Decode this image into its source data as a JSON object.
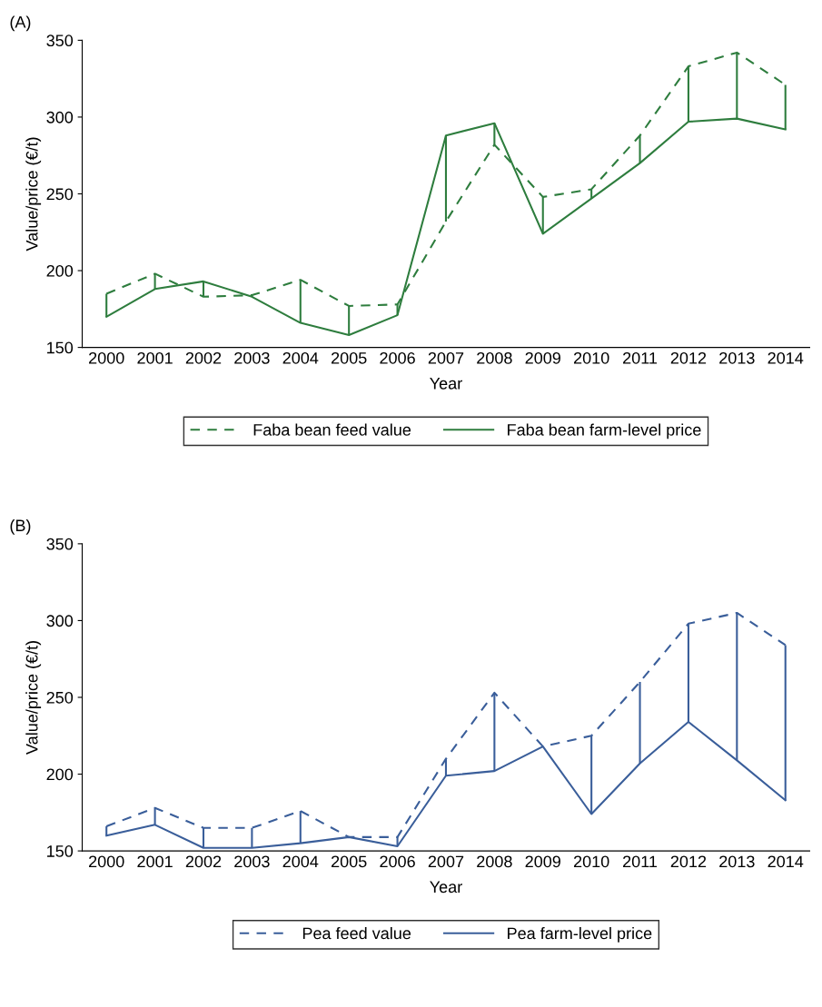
{
  "chart_data": [
    {
      "type": "line",
      "title": "(A)",
      "xlabel": "Year",
      "ylabel": "Value/price (€/t)",
      "categories": [
        "2000",
        "2001",
        "2002",
        "2003",
        "2004",
        "2005",
        "2006",
        "2007",
        "2008",
        "2009",
        "2010",
        "2011",
        "2012",
        "2013",
        "2014"
      ],
      "ylim": [
        150,
        350
      ],
      "yticks": [
        150,
        200,
        250,
        300,
        350
      ],
      "grid": false,
      "legend": "bottom",
      "marker": "none",
      "series": [
        {
          "name": "Faba bean feed value",
          "color": "#2e7d3e",
          "line_style": "dashed",
          "values": [
            185,
            198,
            183,
            184,
            194,
            177,
            178,
            232,
            282,
            248,
            253,
            288,
            333,
            342,
            321
          ]
        },
        {
          "name": "Faba bean farm-level price",
          "color": "#2e7d3e",
          "line_style": "solid",
          "values": [
            170,
            188,
            193,
            183,
            166,
            158,
            171,
            288,
            296,
            224,
            247,
            270,
            297,
            299,
            292
          ],
          "errors": [
            [
              170,
              185
            ],
            [
              188,
              198
            ],
            [
              183,
              193
            ],
            [
              183,
              184
            ],
            [
              166,
              194
            ],
            [
              158,
              177
            ],
            [
              171,
              178
            ],
            [
              232,
              288
            ],
            [
              282,
              296
            ],
            [
              224,
              248
            ],
            [
              247,
              253
            ],
            [
              270,
              288
            ],
            [
              297,
              333
            ],
            [
              299,
              342
            ],
            [
              292,
              321
            ]
          ]
        }
      ]
    },
    {
      "type": "line",
      "title": "(B)",
      "xlabel": "Year",
      "ylabel": "Value/price (€/t)",
      "categories": [
        "2000",
        "2001",
        "2002",
        "2003",
        "2004",
        "2005",
        "2006",
        "2007",
        "2008",
        "2009",
        "2010",
        "2011",
        "2012",
        "2013",
        "2014"
      ],
      "ylim": [
        150,
        350
      ],
      "yticks": [
        150,
        200,
        250,
        300,
        350
      ],
      "grid": false,
      "legend": "bottom",
      "marker": "none",
      "series": [
        {
          "name": "Pea feed value",
          "color": "#3a5e9a",
          "line_style": "dashed",
          "values": [
            166,
            178,
            165,
            165,
            176,
            159,
            159,
            210,
            253,
            218,
            225,
            260,
            298,
            305,
            284
          ]
        },
        {
          "name": "Pea farm-level price",
          "color": "#3a5e9a",
          "line_style": "solid",
          "values": [
            160,
            167,
            152,
            152,
            155,
            159,
            153,
            199,
            202,
            218,
            174,
            207,
            234,
            209,
            183
          ],
          "errors": [
            [
              160,
              166
            ],
            [
              167,
              178
            ],
            [
              152,
              165
            ],
            [
              152,
              165
            ],
            [
              155,
              176
            ],
            null,
            [
              153,
              159
            ],
            [
              199,
              210
            ],
            [
              202,
              253
            ],
            null,
            [
              174,
              225
            ],
            [
              207,
              260
            ],
            [
              234,
              298
            ],
            [
              209,
              305
            ],
            [
              183,
              284
            ]
          ]
        }
      ]
    }
  ]
}
